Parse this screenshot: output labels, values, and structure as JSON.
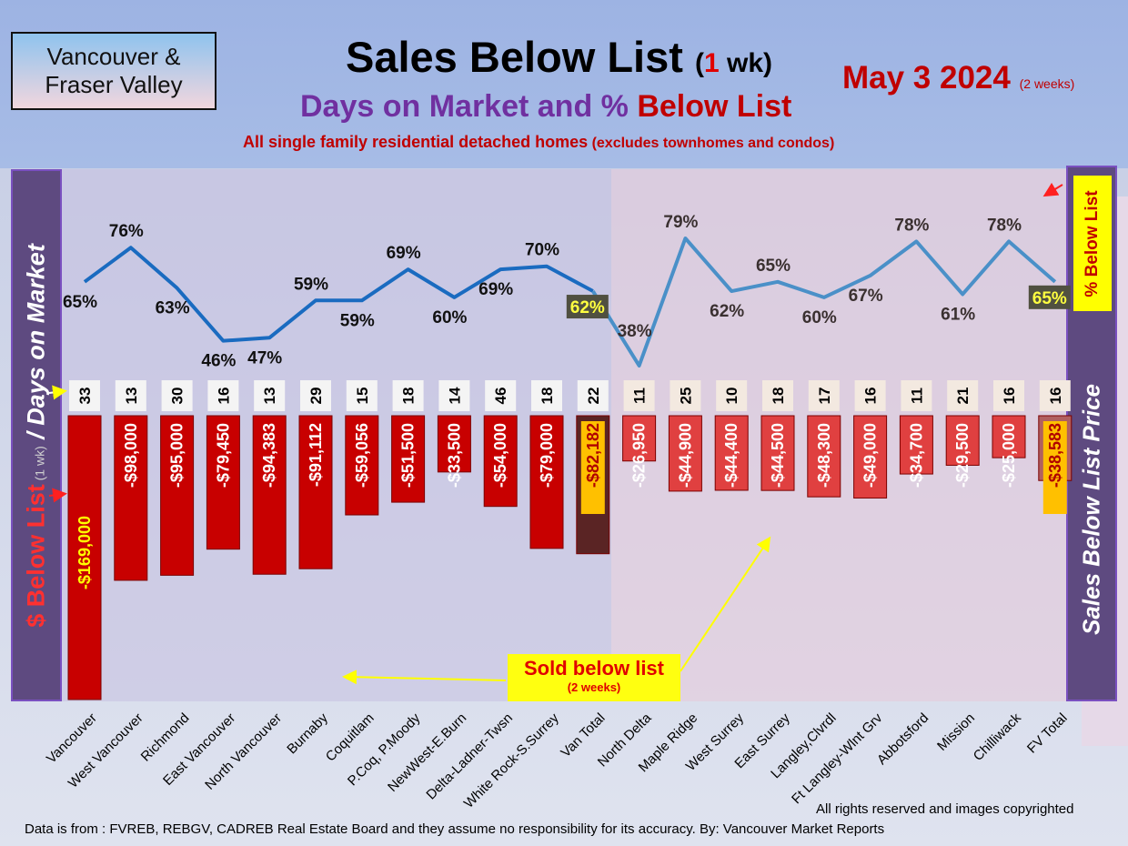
{
  "header": {
    "region_line1": "Vancouver &",
    "region_line2": "Fraser Valley",
    "title": "Sales Below List",
    "title_open": "(",
    "title_num": "1",
    "title_close": " wk)",
    "date": "May 3  2024",
    "date_note": "(2 weeks)",
    "subtitle_part1": "Days on Market and % ",
    "subtitle_part2": "Below List",
    "note_main": "All single family residential detached homes",
    "note_paren": " (excludes townhomes and condos)"
  },
  "left_axis": {
    "part1": "$ Below List",
    "part2": " (1 wk)",
    "part3": " / Days on Market"
  },
  "right_axis": {
    "label": "Sales Below List Price",
    "badge": "% Below List"
  },
  "sold_badge": {
    "line1": "Sold below list",
    "line2": "(2 weeks)"
  },
  "footer": {
    "rights": "All rights reserved and  images copyrighted",
    "source": "Data is from : FVREB, REBGV, CADREB Real Estate Board and they assume no responsibility for its accuracy. By: Vancouver Market Reports"
  },
  "colors": {
    "van_bar": "#c80000",
    "van_total_bar": "#5a2424",
    "fv_bar": "#e04040",
    "fv_total_bar": "#b06060",
    "van_line": "#1a6bc0",
    "fv_line": "#4a90c8",
    "total_label_bg": "#ffc000"
  },
  "chart_data": {
    "type": "bar+line",
    "categories": [
      "Vancouver",
      "West Vancouver",
      "Richmond",
      "East Vancouver",
      "North Vancouver",
      "Burnaby",
      "Coquitlam",
      "P.Coq, P.Moody",
      "NewWest-E.Burn",
      "Delta-Ladner-Twsn",
      "White Rock-S.Surrey",
      "Van Total",
      "North Delta",
      "Maple Ridge",
      "West Surrey",
      "East Surrey",
      "Langley,Clvrdl",
      "Ft Langley-Wlnt Grv",
      "Abbotsford",
      "Mission",
      "Chilliwack",
      "FV Total"
    ],
    "dollar_below_list": [
      -169000,
      -98000,
      -95000,
      -79450,
      -94383,
      -91112,
      -59056,
      -51500,
      -33500,
      -54000,
      -79000,
      -82182,
      -26950,
      -44900,
      -44400,
      -44500,
      -48300,
      -49000,
      -34700,
      -29500,
      -25000,
      -38583
    ],
    "dollar_labels": [
      "-$169,000",
      "-$98,000",
      "-$95,000",
      "-$79,450",
      "-$94,383",
      "-$91,112",
      "-$59,056",
      "-$51,500",
      "-$33,500",
      "-$54,000",
      "-$79,000",
      "-$82,182",
      "-$26,950",
      "-$44,900",
      "-$44,400",
      "-$44,500",
      "-$48,300",
      "-$49,000",
      "-$34,700",
      "-$29,500",
      "-$25,000",
      "-$38,583"
    ],
    "days_on_market": [
      33,
      13,
      30,
      16,
      13,
      29,
      15,
      18,
      14,
      46,
      18,
      22,
      11,
      25,
      10,
      18,
      17,
      16,
      11,
      21,
      16,
      16
    ],
    "pct_below_list": [
      65,
      76,
      63,
      46,
      47,
      59,
      59,
      69,
      60,
      69,
      70,
      62,
      38,
      79,
      62,
      65,
      60,
      67,
      78,
      61,
      78,
      65
    ],
    "pct_labels": [
      "65%",
      "76%",
      "63%",
      "46%",
      "47%",
      "59%",
      "59%",
      "69%",
      "60%",
      "69%",
      "70%",
      "62%",
      "38%",
      "79%",
      "62%",
      "65%",
      "60%",
      "67%",
      "78%",
      "61%",
      "78%",
      "65%"
    ],
    "legend": "none",
    "grid": false
  }
}
